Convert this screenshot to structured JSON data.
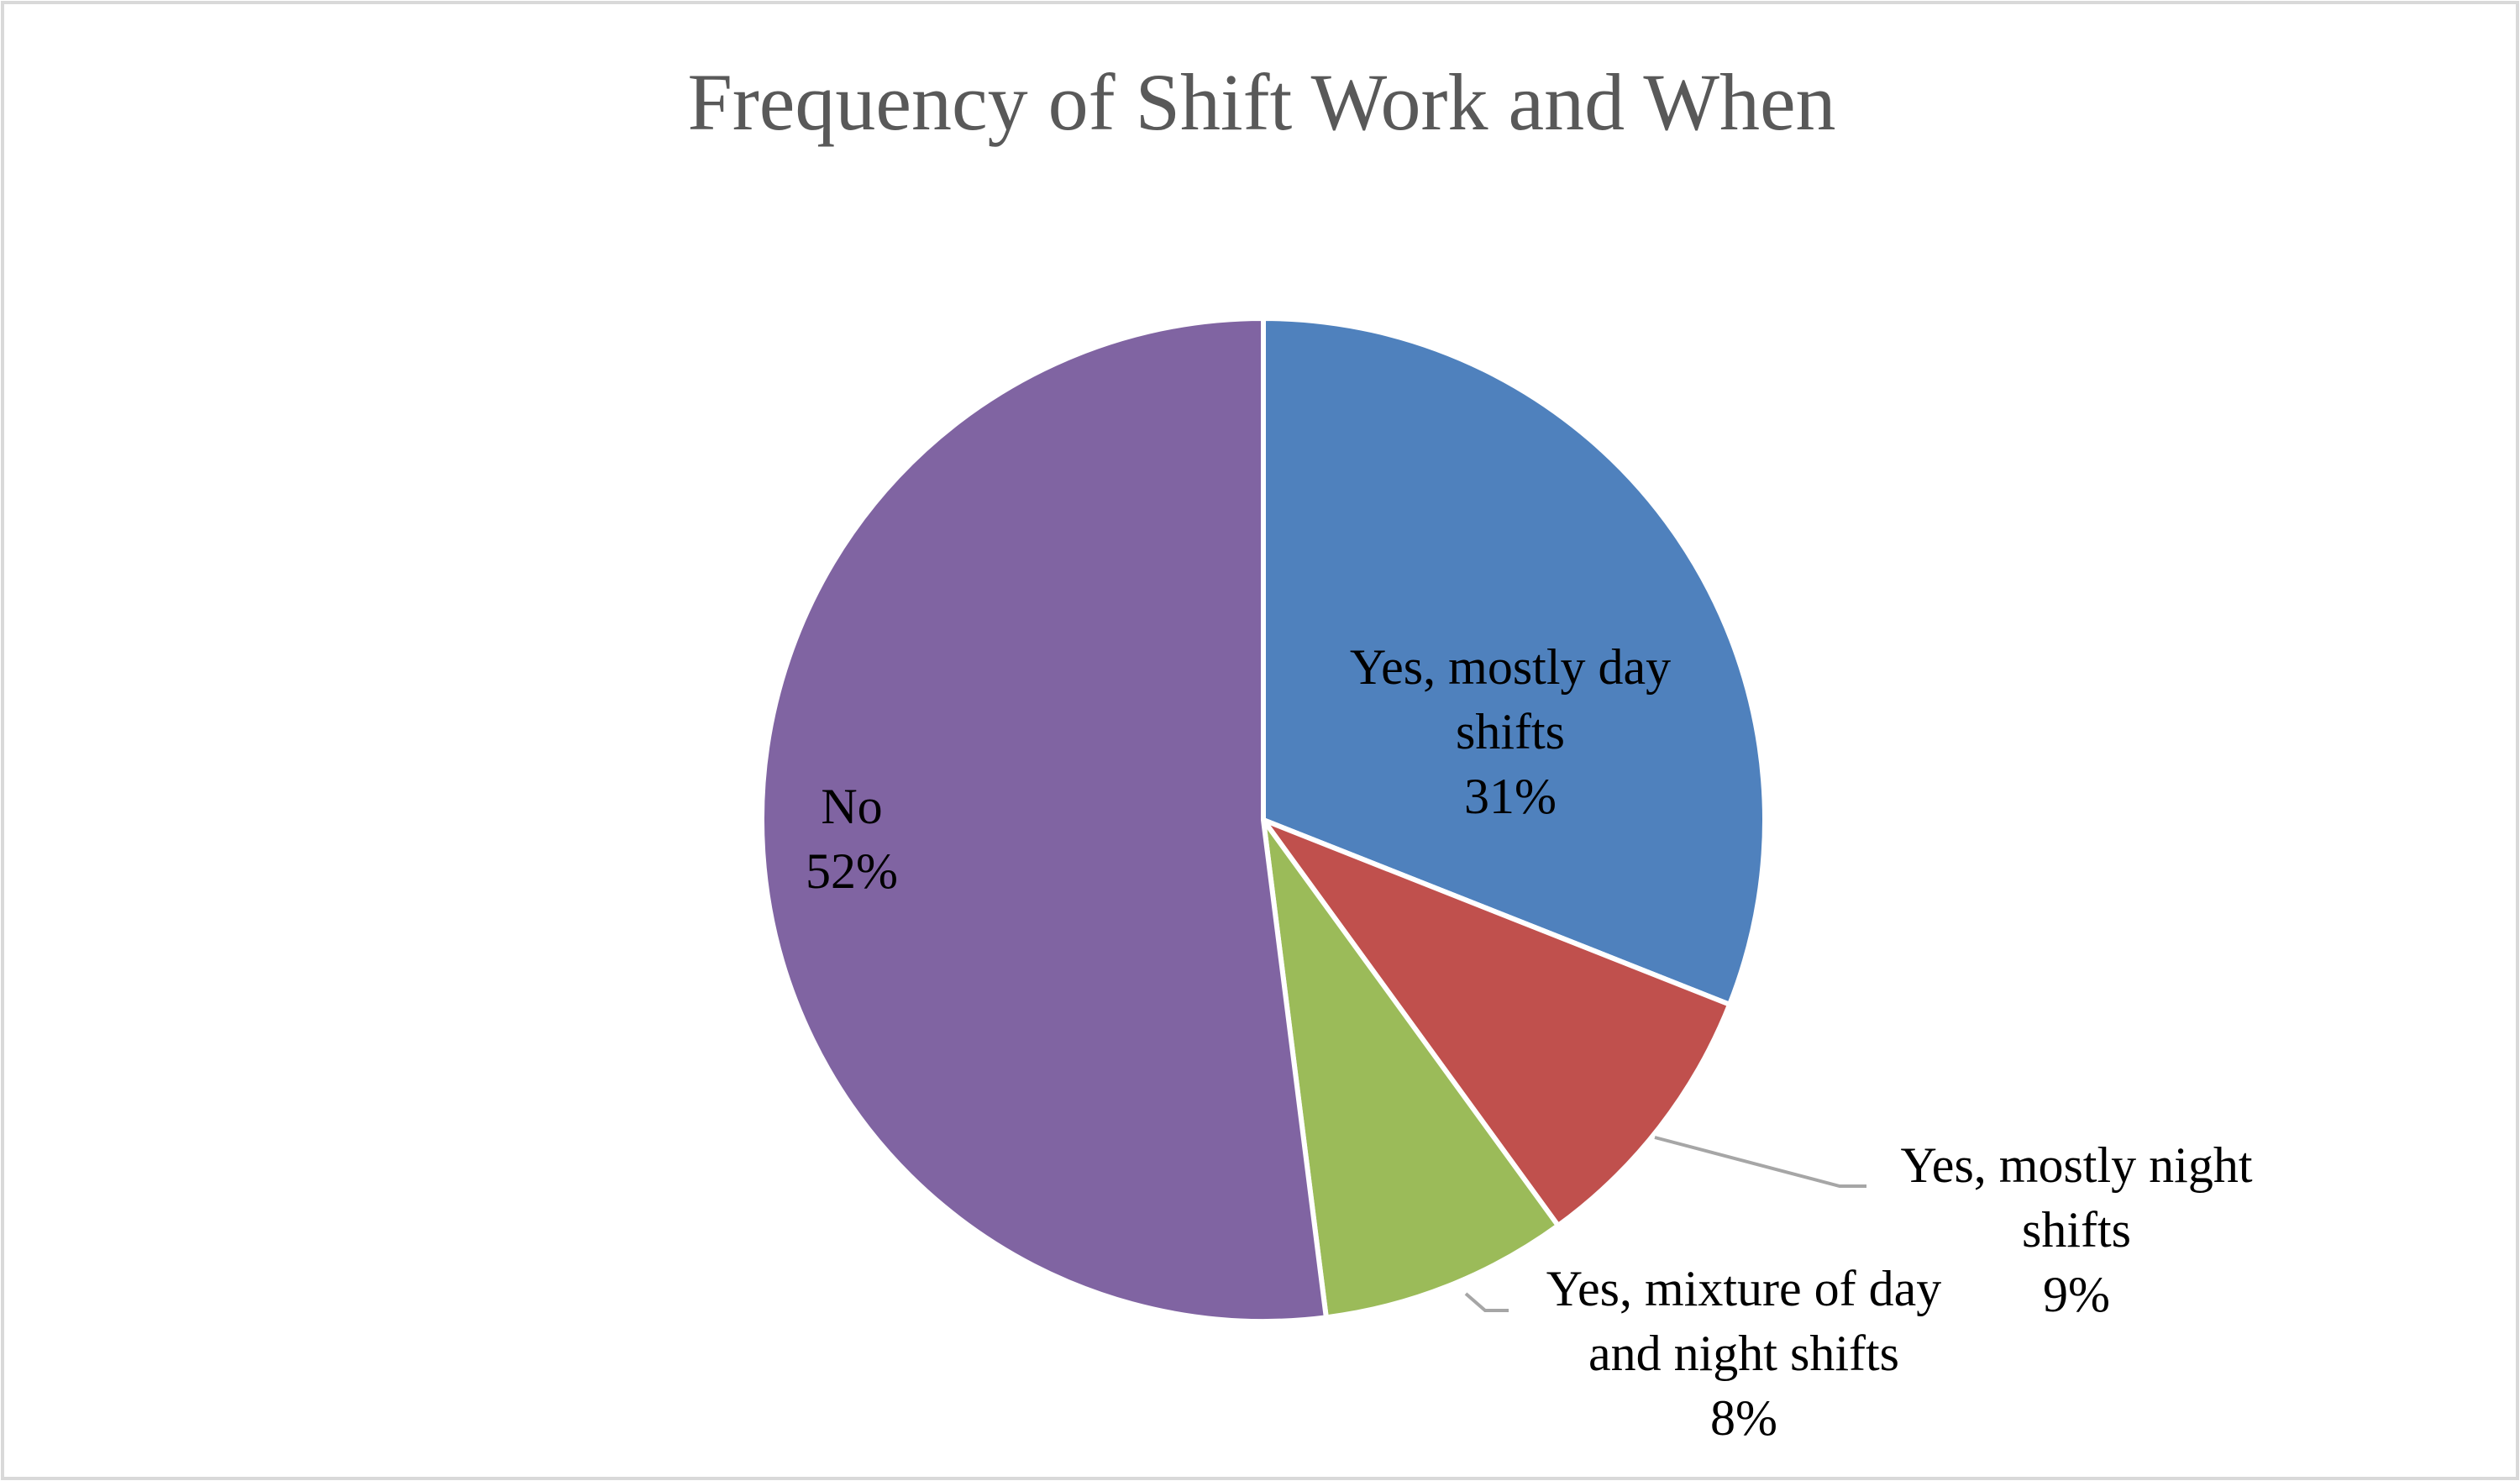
{
  "chart_data": {
    "type": "pie",
    "title": "Frequency of Shift Work and When",
    "slices": [
      {
        "label": "Yes, mostly day shifts",
        "value": 31,
        "value_label": "31%",
        "label_lines": [
          "Yes, mostly day",
          "shifts",
          "31%"
        ],
        "color": "#4f81bd"
      },
      {
        "label": "Yes, mostly night shifts",
        "value": 9,
        "value_label": "9%",
        "label_lines": [
          "Yes, mostly night",
          "shifts",
          "9%"
        ],
        "color": "#c0504d"
      },
      {
        "label": "Yes, mixture of day and night shifts",
        "value": 8,
        "value_label": "8%",
        "label_lines": [
          "Yes, mixture of day",
          "and night shifts",
          "8%"
        ],
        "color": "#9bbb59"
      },
      {
        "label": "No",
        "value": 52,
        "value_label": "52%",
        "label_lines": [
          "No",
          "52%"
        ],
        "color": "#8064a2"
      }
    ],
    "start_angle": "12 o'clock",
    "direction": "clockwise",
    "legend": "none",
    "data_labels": "category name and percentage"
  }
}
